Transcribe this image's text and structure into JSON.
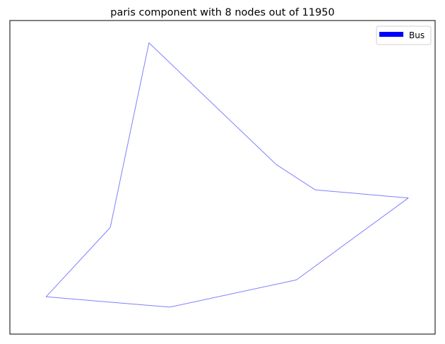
{
  "chart_data": {
    "type": "line",
    "title": "paris component with 8 nodes out of 11950",
    "xlabel": "",
    "ylabel": "",
    "axes_ticks": false,
    "grid": false,
    "legend": {
      "placement": "top-right",
      "entries": [
        {
          "label": "Bus",
          "color": "#0000ff"
        }
      ]
    },
    "series": [
      {
        "name": "Bus",
        "color": "#0000ff",
        "opacity": 0.5,
        "closed": true,
        "points": [
          {
            "x": 0.327,
            "y": 0.929
          },
          {
            "x": 0.236,
            "y": 0.34
          },
          {
            "x": 0.085,
            "y": 0.119
          },
          {
            "x": 0.376,
            "y": 0.086
          },
          {
            "x": 0.674,
            "y": 0.173
          },
          {
            "x": 0.937,
            "y": 0.434
          },
          {
            "x": 0.718,
            "y": 0.46
          },
          {
            "x": 0.626,
            "y": 0.541
          }
        ]
      }
    ]
  }
}
